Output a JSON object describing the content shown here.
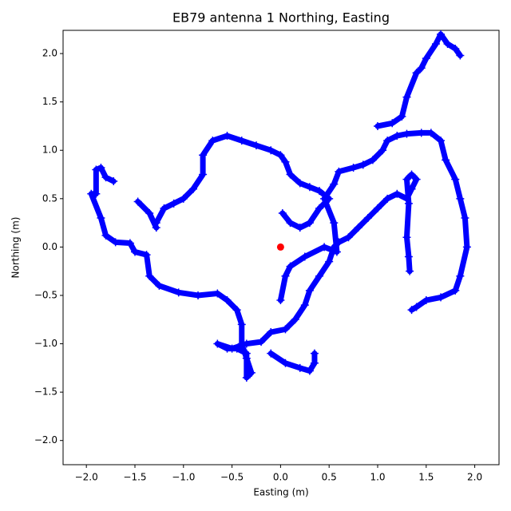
{
  "chart_data": {
    "type": "line",
    "title": "EB79 antenna 1 Northing, Easting",
    "x_label": "Easting (m)",
    "y_label": "Northing (m)",
    "xlim": [
      -2.24,
      2.25
    ],
    "ylim": [
      -2.25,
      2.24
    ],
    "xticks": [
      {
        "value": -2,
        "label": "−2.0"
      },
      {
        "value": -1.5,
        "label": "−1.5"
      },
      {
        "value": -1,
        "label": "−1.0"
      },
      {
        "value": -0.5,
        "label": "−0.5"
      },
      {
        "value": 0,
        "label": "0.0"
      },
      {
        "value": 0.5,
        "label": "0.5"
      },
      {
        "value": 1,
        "label": "1.0"
      },
      {
        "value": 1.5,
        "label": "1.5"
      },
      {
        "value": 2,
        "label": "2.0"
      }
    ],
    "yticks": [
      {
        "value": -2,
        "label": "−2.0"
      },
      {
        "value": -1.5,
        "label": "−1.5"
      },
      {
        "value": -1,
        "label": "−1.0"
      },
      {
        "value": -0.5,
        "label": "−0.5"
      },
      {
        "value": 0,
        "label": "0.0"
      },
      {
        "value": 0.5,
        "label": "0.5"
      },
      {
        "value": 1,
        "label": "1.0"
      },
      {
        "value": 1.5,
        "label": "1.5"
      },
      {
        "value": 2,
        "label": "2.0"
      }
    ],
    "series": [
      {
        "color": "#0000ff",
        "marker": "+",
        "x": [
          0.02,
          0.1,
          0.2,
          0.3,
          0.4,
          0.5,
          0.4,
          0.3,
          0.2,
          0.1,
          0.05,
          0.0,
          -0.1,
          -0.25,
          -0.4,
          -0.55,
          -0.7,
          -0.8,
          -0.8,
          -0.9,
          -1.0,
          -1.1,
          -1.2,
          -1.28,
          null,
          -1.47,
          -1.35,
          -1.28,
          null,
          -1.72,
          -1.8,
          -1.85,
          -1.9,
          -1.9,
          -1.95,
          -1.85,
          -1.8,
          -1.7,
          -1.55,
          -1.5,
          -1.38,
          -1.35,
          -1.25,
          -1.05,
          -0.85,
          -0.65,
          -0.55,
          -0.45,
          -0.4,
          -0.4,
          -0.35,
          -0.3,
          -0.35,
          -0.35,
          -0.45,
          -0.55,
          -0.65,
          -0.5,
          -0.35,
          -0.2,
          -0.1,
          0.05,
          0.15,
          0.25,
          0.3,
          0.4,
          0.5,
          0.55,
          0.6,
          0.7,
          0.8,
          0.9,
          1.0,
          1.1,
          1.2,
          1.3,
          1.35,
          1.4,
          1.35,
          1.3,
          1.32,
          1.3,
          1.32,
          1.33,
          null,
          0.0,
          0.05,
          0.1,
          0.25,
          0.45,
          0.58,
          0.55,
          0.45,
          0.55,
          0.6,
          0.75,
          0.85,
          0.95,
          1.05,
          1.1,
          1.2,
          1.3,
          1.45,
          1.55,
          1.65,
          1.7,
          1.8,
          1.85,
          1.9,
          1.92,
          1.85,
          1.8,
          1.65,
          1.5,
          1.4,
          1.35,
          null,
          1.0,
          1.15,
          1.25,
          1.3,
          1.4,
          1.45,
          1.5,
          1.6,
          1.65,
          1.72,
          1.8,
          1.85,
          null,
          -0.1,
          0.05,
          0.2,
          0.3,
          0.35,
          0.35
        ],
        "y": [
          0.35,
          0.25,
          0.2,
          0.25,
          0.4,
          0.5,
          0.58,
          0.62,
          0.66,
          0.75,
          0.88,
          0.95,
          1.0,
          1.05,
          1.1,
          1.15,
          1.1,
          0.95,
          0.75,
          0.6,
          0.5,
          0.45,
          0.4,
          0.25,
          null,
          0.47,
          0.35,
          0.2,
          null,
          0.68,
          0.72,
          0.82,
          0.8,
          0.55,
          0.55,
          0.3,
          0.12,
          0.05,
          0.04,
          -0.05,
          -0.08,
          -0.3,
          -0.4,
          -0.47,
          -0.5,
          -0.48,
          -0.55,
          -0.65,
          -0.8,
          -1.0,
          -1.15,
          -1.3,
          -1.35,
          -1.1,
          -1.05,
          -1.05,
          -1.0,
          -1.05,
          -1.0,
          -0.98,
          -0.88,
          -0.85,
          -0.75,
          -0.6,
          -0.45,
          -0.3,
          -0.15,
          0.0,
          0.05,
          0.1,
          0.2,
          0.3,
          0.4,
          0.5,
          0.55,
          0.5,
          0.6,
          0.7,
          0.75,
          0.7,
          0.45,
          0.1,
          -0.1,
          -0.25,
          null,
          -0.55,
          -0.3,
          -0.2,
          -0.1,
          0.0,
          -0.05,
          0.25,
          0.5,
          0.65,
          0.78,
          0.82,
          0.85,
          0.9,
          1.0,
          1.1,
          1.15,
          1.17,
          1.18,
          1.18,
          1.1,
          0.9,
          0.7,
          0.5,
          0.3,
          0.0,
          -0.3,
          -0.45,
          -0.52,
          -0.55,
          -0.62,
          -0.65,
          null,
          1.25,
          1.28,
          1.35,
          1.55,
          1.8,
          1.85,
          1.95,
          2.1,
          2.2,
          2.1,
          2.05,
          1.98,
          null,
          -1.1,
          -1.2,
          -1.25,
          -1.28,
          -1.2,
          -1.1
        ]
      },
      {
        "color": "#ff0000",
        "marker": "o",
        "x": [
          0
        ],
        "y": [
          0
        ]
      }
    ]
  }
}
